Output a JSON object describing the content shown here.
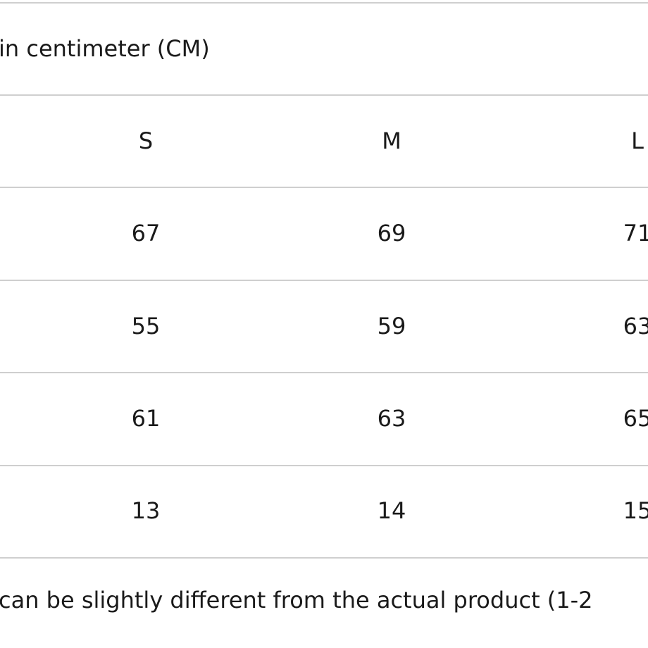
{
  "header": {
    "title": "in centimeter (CM)"
  },
  "table": {
    "columns": [
      "S",
      "M",
      "L"
    ],
    "rows": [
      [
        67,
        69,
        71
      ],
      [
        55,
        59,
        63
      ],
      [
        61,
        63,
        65
      ],
      [
        13,
        14,
        15
      ]
    ]
  },
  "footer": {
    "note": "can be slightly different from the actual product (1-2"
  }
}
